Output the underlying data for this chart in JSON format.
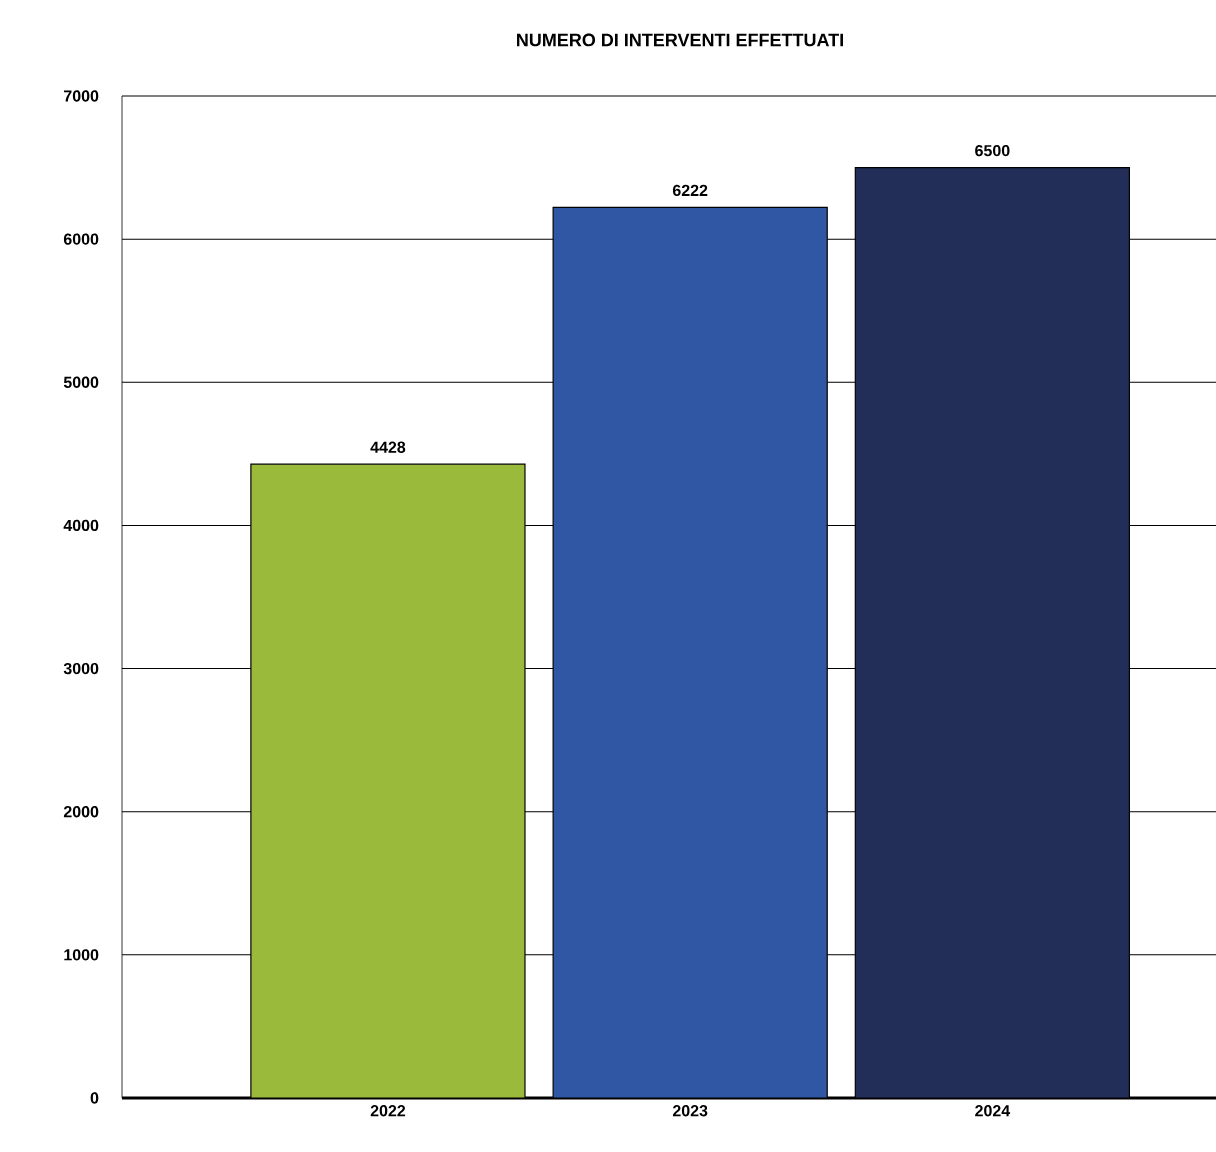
{
  "chart_data": {
    "type": "bar",
    "title": "NUMERO DI INTERVENTI EFFETTUATI",
    "categories": [
      "2022",
      "2023",
      "2024"
    ],
    "values": [
      4428,
      6222,
      6500
    ],
    "colors": [
      "#9aba3c",
      "#3057a3",
      "#222d58"
    ],
    "ylim": [
      0,
      7000
    ],
    "yticks": [
      0,
      1000,
      2000,
      3000,
      4000,
      5000,
      6000,
      7000
    ],
    "grid": "y",
    "data_labels": true
  }
}
